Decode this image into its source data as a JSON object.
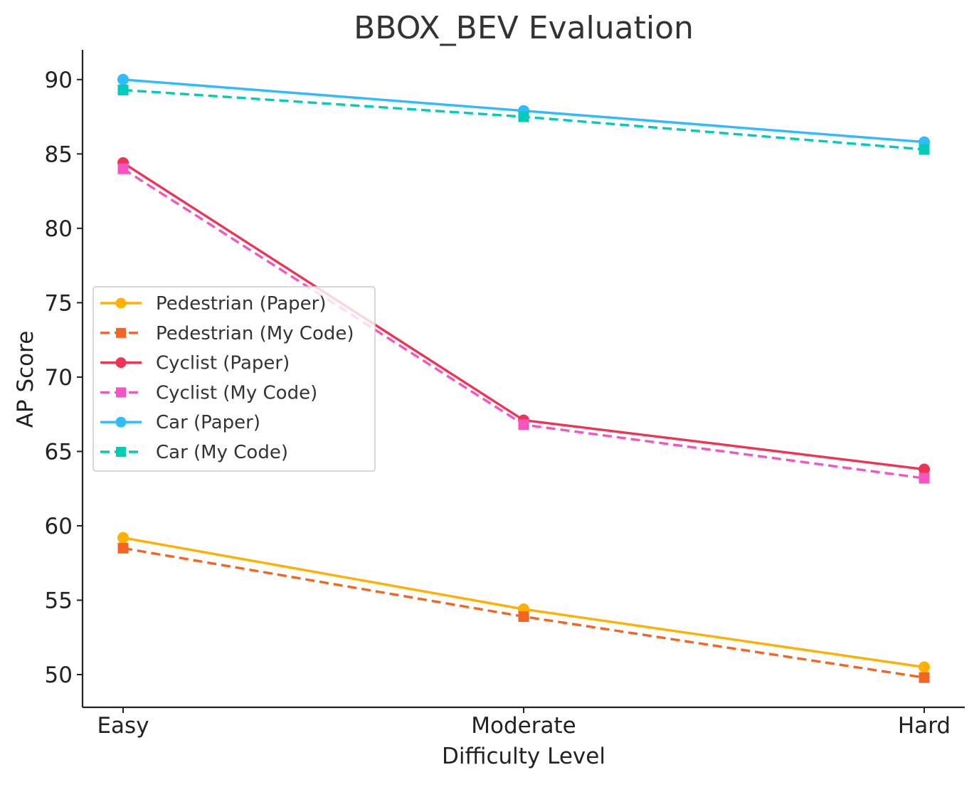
{
  "chart_data": {
    "type": "line",
    "title": "BBOX_BEV Evaluation",
    "xlabel": "Difficulty Level",
    "ylabel": "AP Score",
    "categories": [
      "Easy",
      "Moderate",
      "Hard"
    ],
    "ylim": [
      47.8,
      92
    ],
    "yticks": [
      50,
      55,
      60,
      65,
      70,
      75,
      80,
      85,
      90
    ],
    "grid": false,
    "legend_position": "center-left",
    "series": [
      {
        "name": "Pedestrian (Paper)",
        "values": [
          59.2,
          54.4,
          50.5
        ],
        "color": "#FFB000",
        "dash": "solid",
        "marker": "circle"
      },
      {
        "name": "Pedestrian (My Code)",
        "values": [
          58.5,
          53.9,
          49.8
        ],
        "color": "#F26522",
        "dash": "dashed",
        "marker": "square"
      },
      {
        "name": "Cyclist (Paper)",
        "values": [
          84.4,
          67.1,
          63.8
        ],
        "color": "#EE3355",
        "dash": "solid",
        "marker": "circle"
      },
      {
        "name": "Cyclist (My Code)",
        "values": [
          84.0,
          66.8,
          63.2
        ],
        "color": "#F555C0",
        "dash": "dashed",
        "marker": "square"
      },
      {
        "name": "Car (Paper)",
        "values": [
          90.0,
          87.9,
          85.8
        ],
        "color": "#30BBFF",
        "dash": "solid",
        "marker": "circle"
      },
      {
        "name": "Car (My Code)",
        "values": [
          89.3,
          87.5,
          85.3
        ],
        "color": "#00CCB8",
        "dash": "dashed",
        "marker": "square"
      }
    ]
  }
}
